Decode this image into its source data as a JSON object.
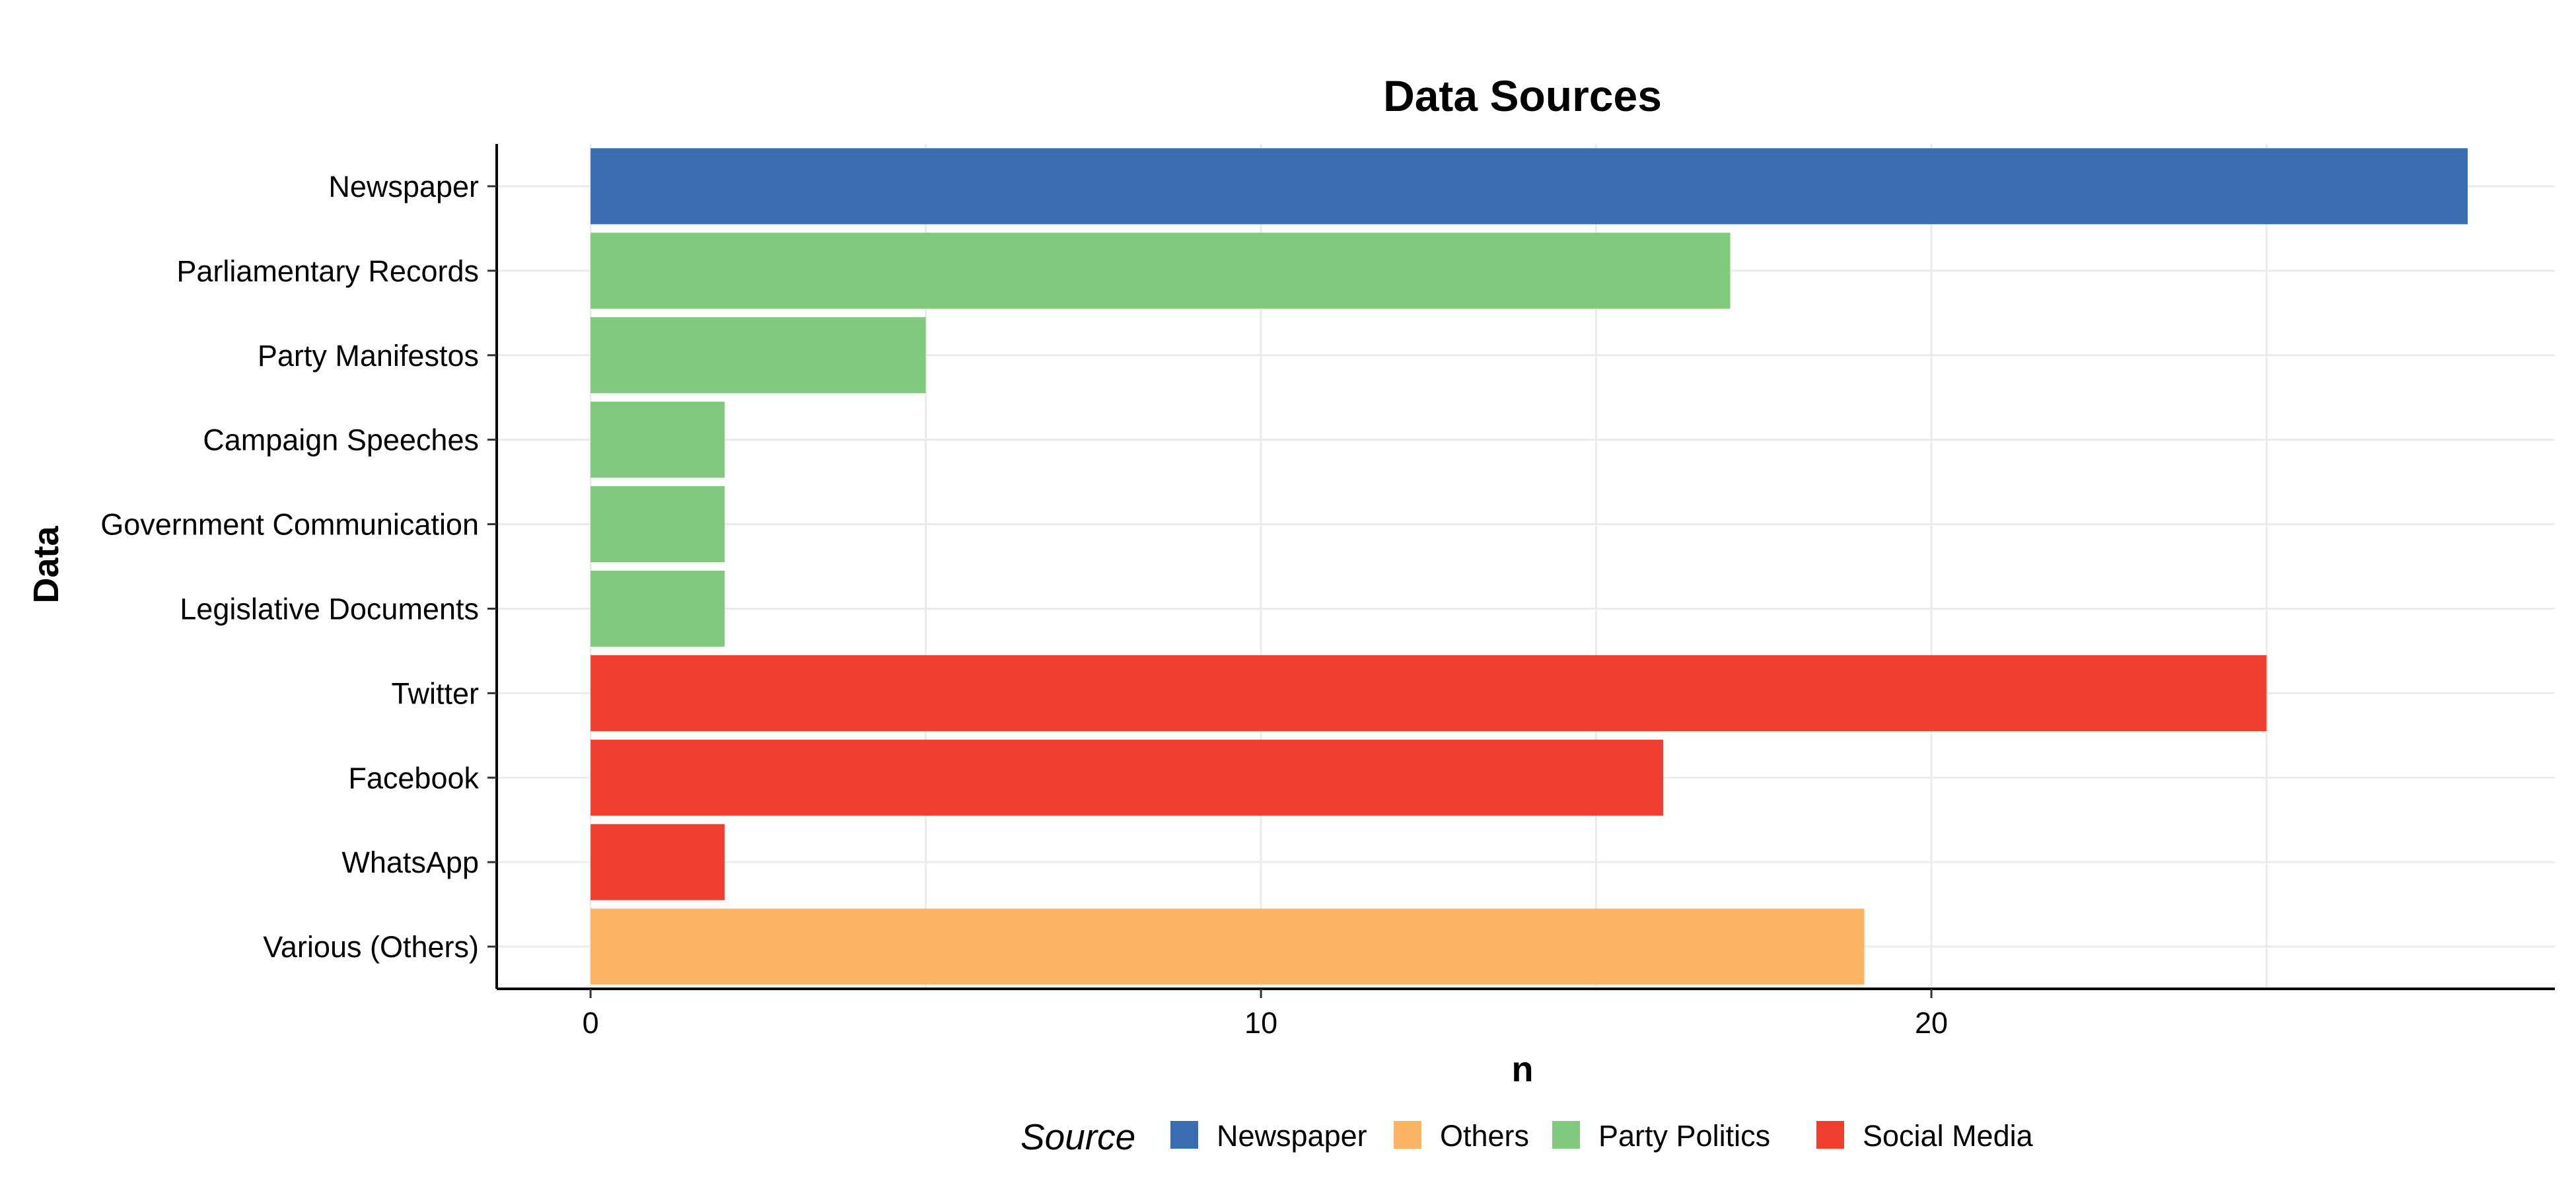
{
  "chart_data": {
    "type": "bar",
    "orientation": "horizontal",
    "title": "Data Sources",
    "xlabel": "n",
    "ylabel": "Data",
    "xlim": [
      -1.4,
      29.3
    ],
    "x_ticks": [
      0,
      10,
      20
    ],
    "grid": true,
    "categories": [
      "Newspaper",
      "Parliamentary Records",
      "Party Manifestos",
      "Campaign Speeches",
      "Government Communication",
      "Legislative Documents",
      "Twitter",
      "Facebook",
      "WhatsApp",
      "Various (Others)"
    ],
    "values": [
      28,
      17,
      5,
      2,
      2,
      2,
      25,
      16,
      2,
      19
    ],
    "groups": [
      "Newspaper",
      "Party Politics",
      "Party Politics",
      "Party Politics",
      "Party Politics",
      "Party Politics",
      "Social Media",
      "Social Media",
      "Social Media",
      "Others"
    ],
    "legend": {
      "title": "Source",
      "position": "bottom",
      "entries": [
        {
          "name": "Newspaper",
          "color": "#3A6CB0"
        },
        {
          "name": "Others",
          "color": "#FBB463"
        },
        {
          "name": "Party Politics",
          "color": "#80C97D"
        },
        {
          "name": "Social Media",
          "color": "#EF3D2E"
        }
      ]
    }
  }
}
